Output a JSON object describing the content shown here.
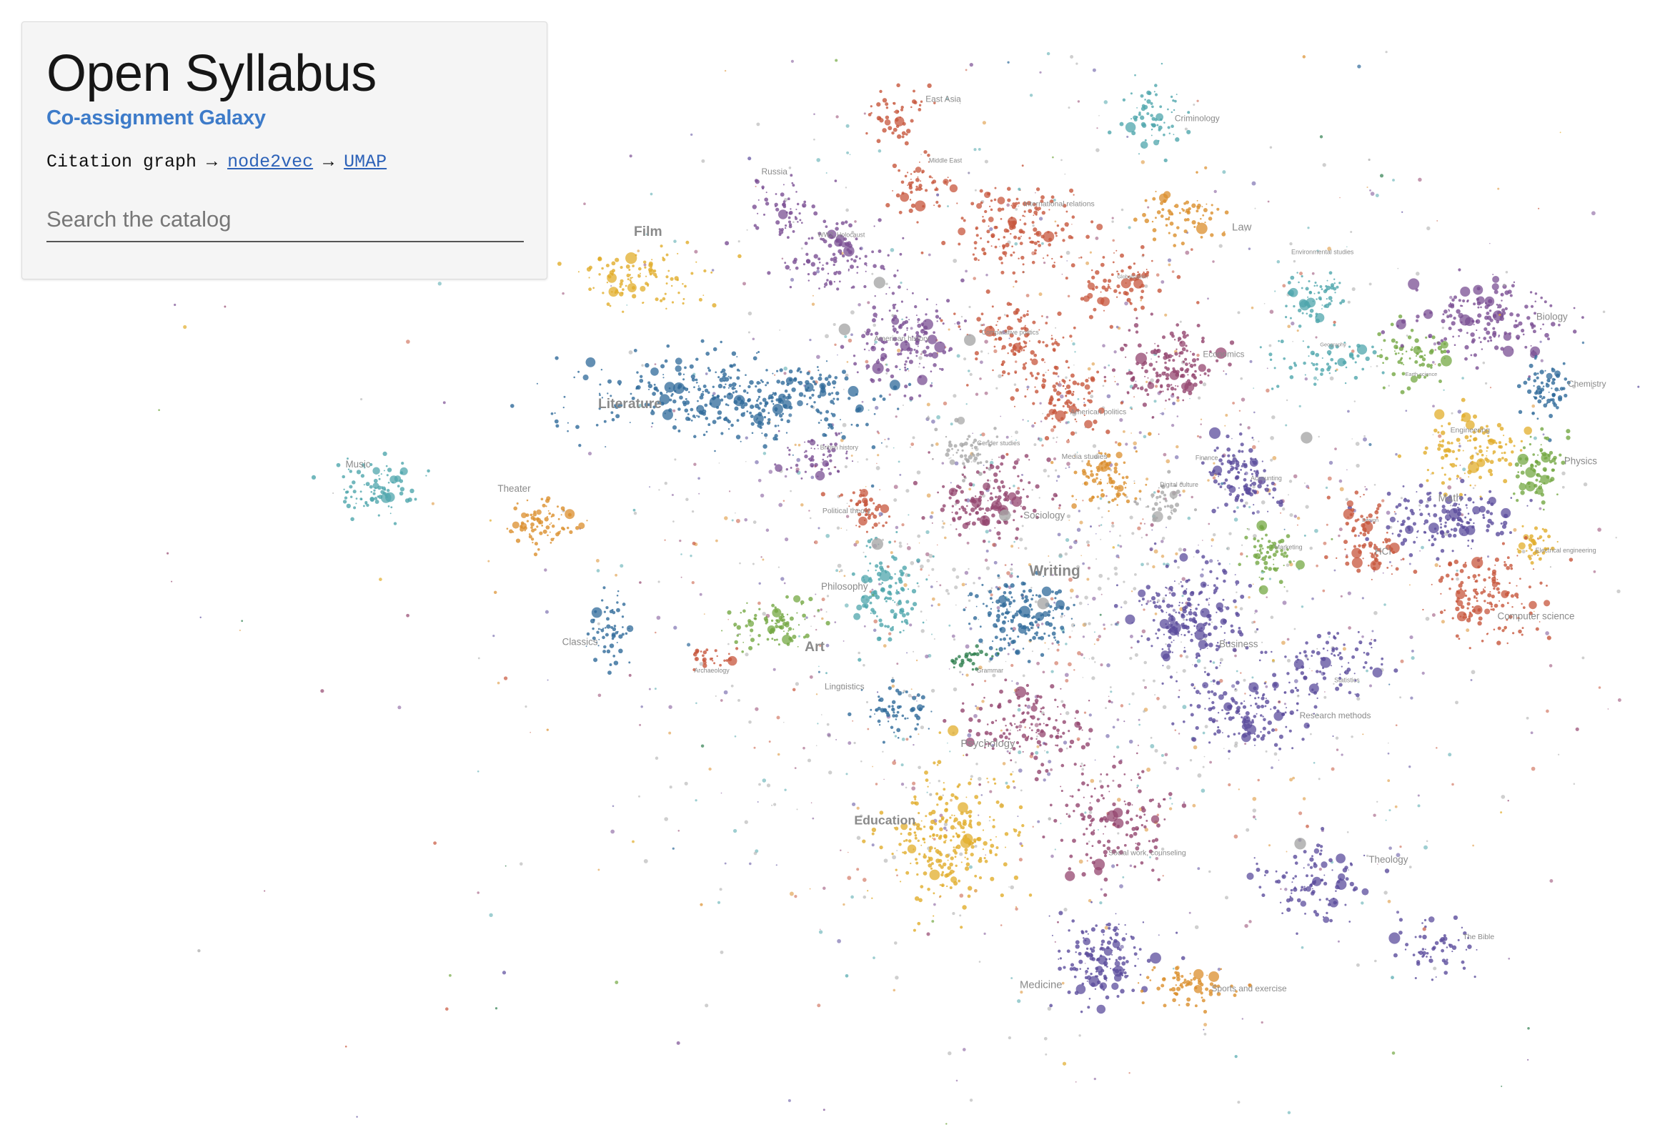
{
  "header": {
    "title": "Open Syllabus",
    "subtitle": "Co-assignment Galaxy",
    "pipeline_prefix": "Citation graph",
    "arrow": "→",
    "link1": "node2vec",
    "link2": "UMAP"
  },
  "search": {
    "placeholder": "Search the catalog",
    "value": ""
  },
  "colors": {
    "blue": "#2f6a9a",
    "teal": "#4fa6ac",
    "purple": "#7a4f93",
    "magenta": "#94466f",
    "red": "#c7563c",
    "orange": "#db8e2c",
    "yellow": "#e1ad2b",
    "green": "#74a843",
    "indigo": "#5b4c9c",
    "gray": "#a8a8a8",
    "darkgreen": "#2f7f4f"
  },
  "clusters": [
    {
      "id": "music",
      "label": "Music",
      "color": "teal"
    },
    {
      "id": "theater",
      "label": "Theater",
      "color": "orange"
    },
    {
      "id": "film",
      "label": "Film",
      "color": "yellow"
    },
    {
      "id": "literature",
      "label": "Literature",
      "color": "blue"
    },
    {
      "id": "classics",
      "label": "Classics",
      "color": "blue"
    },
    {
      "id": "archaeology",
      "label": "Archaeology",
      "color": "red"
    },
    {
      "id": "art",
      "label": "Art",
      "color": "green"
    },
    {
      "id": "philosophy",
      "label": "Philosophy",
      "color": "teal"
    },
    {
      "id": "political_theory",
      "label": "Political theory",
      "color": "red"
    },
    {
      "id": "british_history",
      "label": "British history",
      "color": "purple"
    },
    {
      "id": "russia",
      "label": "Russia",
      "color": "purple"
    },
    {
      "id": "ww2",
      "label": "WW2, Holocaust",
      "color": "purple"
    },
    {
      "id": "east_asia",
      "label": "East Asia",
      "color": "red"
    },
    {
      "id": "middle_east",
      "label": "Middle East",
      "color": "red"
    },
    {
      "id": "american_history",
      "label": "American history",
      "color": "purple"
    },
    {
      "id": "international_relations",
      "label": "International relations",
      "color": "red"
    },
    {
      "id": "comparative_politics",
      "label": "Comparative politics",
      "color": "red"
    },
    {
      "id": "globalization",
      "label": "Globalization",
      "color": "red"
    },
    {
      "id": "american_politics",
      "label": "American politics",
      "color": "red"
    },
    {
      "id": "gender_studies",
      "label": "Gender studies",
      "color": "gray"
    },
    {
      "id": "media_studies",
      "label": "Media studies",
      "color": "orange"
    },
    {
      "id": "sociology",
      "label": "Sociology",
      "color": "magenta"
    },
    {
      "id": "writing",
      "label": "Writing",
      "color": "blue"
    },
    {
      "id": "grammar",
      "label": "Grammar",
      "color": "darkgreen"
    },
    {
      "id": "linguistics",
      "label": "Linguistics",
      "color": "blue"
    },
    {
      "id": "psychology",
      "label": "Psychology",
      "color": "magenta"
    },
    {
      "id": "education",
      "label": "Education",
      "color": "yellow"
    },
    {
      "id": "social_work",
      "label": "Social work, counseling",
      "color": "magenta"
    },
    {
      "id": "medicine",
      "label": "Medicine",
      "color": "indigo"
    },
    {
      "id": "sports",
      "label": "Sports and exercise",
      "color": "orange"
    },
    {
      "id": "criminology",
      "label": "Criminology",
      "color": "teal"
    },
    {
      "id": "law",
      "label": "Law",
      "color": "orange"
    },
    {
      "id": "economics",
      "label": "Economics",
      "color": "magenta"
    },
    {
      "id": "finance",
      "label": "Finance",
      "color": "indigo"
    },
    {
      "id": "accounting",
      "label": "Accounting",
      "color": "indigo"
    },
    {
      "id": "digital_culture",
      "label": "Digital culture",
      "color": "gray"
    },
    {
      "id": "marketing",
      "label": "Marketing",
      "color": "green"
    },
    {
      "id": "business",
      "label": "Business",
      "color": "indigo"
    },
    {
      "id": "statistics",
      "label": "Statistics",
      "color": "indigo"
    },
    {
      "id": "research_methods",
      "label": "Research methods",
      "color": "indigo"
    },
    {
      "id": "theology",
      "label": "Theology",
      "color": "indigo"
    },
    {
      "id": "bible",
      "label": "The Bible",
      "color": "indigo"
    },
    {
      "id": "environmental",
      "label": "Environmental studies",
      "color": "teal"
    },
    {
      "id": "geography",
      "label": "Geography",
      "color": "teal"
    },
    {
      "id": "earth_science",
      "label": "Earth science",
      "color": "green"
    },
    {
      "id": "biology",
      "label": "Biology",
      "color": "purple"
    },
    {
      "id": "chemistry",
      "label": "Chemistry",
      "color": "blue"
    },
    {
      "id": "physics",
      "label": "Physics",
      "color": "green"
    },
    {
      "id": "engineering",
      "label": "Engineering",
      "color": "yellow"
    },
    {
      "id": "math",
      "label": "Math",
      "color": "indigo"
    },
    {
      "id": "electrical_engineering",
      "label": "Electrical engineering",
      "color": "yellow"
    },
    {
      "id": "computer_science",
      "label": "Computer science",
      "color": "red"
    },
    {
      "id": "design",
      "label": "Design",
      "color": "red"
    },
    {
      "id": "hci",
      "label": "HCI",
      "color": "red"
    }
  ]
}
